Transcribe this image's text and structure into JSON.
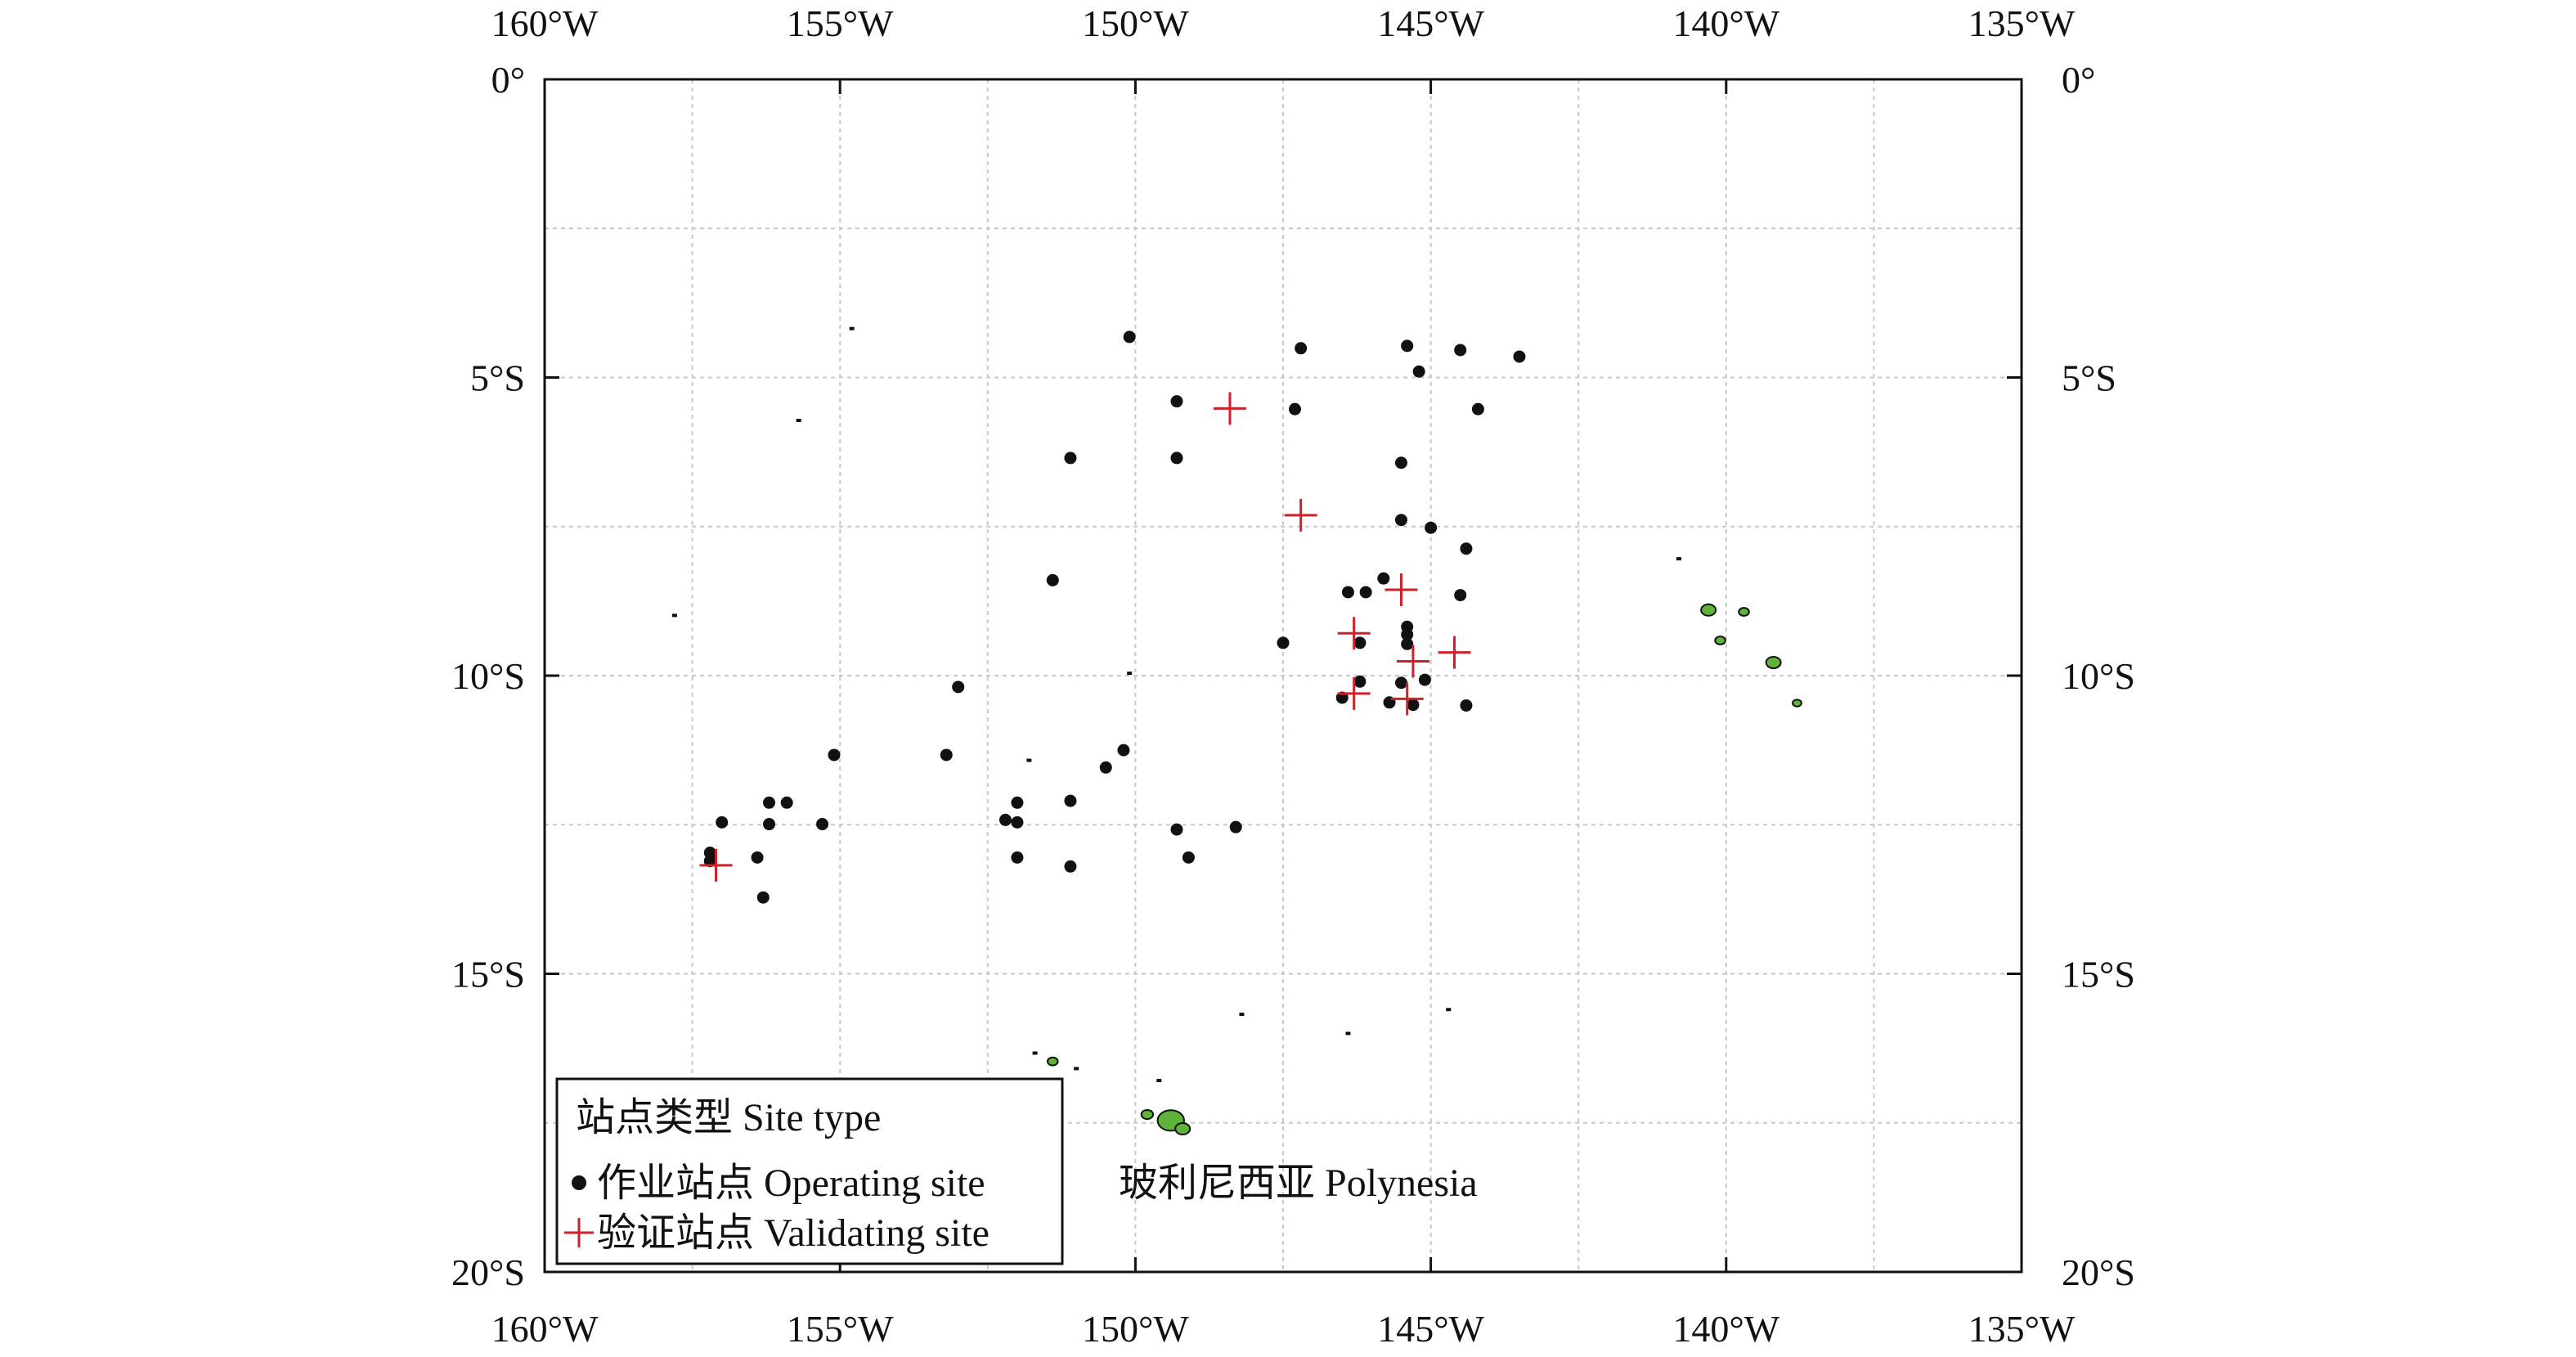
{
  "map_data": {
    "type": "scatter-map",
    "region_label": "玻利尼西亚 Polynesia",
    "lon_range": [
      -160,
      -135
    ],
    "lat_range": [
      -20,
      0
    ],
    "grid_step_deg": 2.5,
    "x_ticks": [
      {
        "value": -160,
        "label": "160°W"
      },
      {
        "value": -155,
        "label": "155°W"
      },
      {
        "value": -150,
        "label": "150°W"
      },
      {
        "value": -145,
        "label": "145°W"
      },
      {
        "value": -140,
        "label": "140°W"
      },
      {
        "value": -135,
        "label": "135°W"
      }
    ],
    "y_ticks": [
      {
        "value": 0,
        "label": "0°"
      },
      {
        "value": -5,
        "label": "5°S"
      },
      {
        "value": -10,
        "label": "10°S"
      },
      {
        "value": -15,
        "label": "15°S"
      },
      {
        "value": -20,
        "label": "20°S"
      }
    ],
    "legend": {
      "title": "站点类型 Site type",
      "placement": "bottom-left",
      "entries": [
        {
          "label": "作业站点 Operating site",
          "marker": "dot",
          "color": "#111111"
        },
        {
          "label": "验证站点 Validating site",
          "marker": "plus",
          "color": "#d0202a"
        }
      ]
    },
    "colors": {
      "operating": "#111111",
      "validating": "#d0202a",
      "land": "#5fb33a",
      "grid": "#c8c8c8"
    },
    "operating_sites": [
      [
        -150.1,
        -4.32
      ],
      [
        -147.2,
        -4.51
      ],
      [
        -145.4,
        -4.47
      ],
      [
        -144.5,
        -4.54
      ],
      [
        -143.5,
        -4.65
      ],
      [
        -145.2,
        -4.9
      ],
      [
        -149.3,
        -5.4
      ],
      [
        -147.3,
        -5.53
      ],
      [
        -144.2,
        -5.53
      ],
      [
        -151.1,
        -6.35
      ],
      [
        -149.3,
        -6.35
      ],
      [
        -145.5,
        -6.43
      ],
      [
        -145.5,
        -7.39
      ],
      [
        -145.0,
        -7.52
      ],
      [
        -144.4,
        -7.87
      ],
      [
        -151.4,
        -8.4
      ],
      [
        -146.4,
        -8.6
      ],
      [
        -146.1,
        -8.6
      ],
      [
        -145.8,
        -8.37
      ],
      [
        -144.5,
        -8.65
      ],
      [
        -147.5,
        -9.45
      ],
      [
        -146.2,
        -9.45
      ],
      [
        -145.4,
        -9.18
      ],
      [
        -145.4,
        -9.31
      ],
      [
        -145.4,
        -9.47
      ],
      [
        -153.0,
        -10.19
      ],
      [
        -146.2,
        -10.1
      ],
      [
        -145.5,
        -10.12
      ],
      [
        -145.1,
        -10.07
      ],
      [
        -146.5,
        -10.37
      ],
      [
        -145.7,
        -10.45
      ],
      [
        -145.3,
        -10.49
      ],
      [
        -144.4,
        -10.5
      ],
      [
        -155.1,
        -11.33
      ],
      [
        -153.2,
        -11.33
      ],
      [
        -150.2,
        -11.25
      ],
      [
        -150.5,
        -11.54
      ],
      [
        -156.2,
        -12.13
      ],
      [
        -155.9,
        -12.13
      ],
      [
        -152.0,
        -12.13
      ],
      [
        -151.1,
        -12.1
      ],
      [
        -157.0,
        -12.46
      ],
      [
        -156.2,
        -12.49
      ],
      [
        -155.3,
        -12.49
      ],
      [
        -152.2,
        -12.42
      ],
      [
        -152.0,
        -12.46
      ],
      [
        -149.3,
        -12.58
      ],
      [
        -148.3,
        -12.54
      ],
      [
        -157.2,
        -12.97
      ],
      [
        -157.2,
        -13.11
      ],
      [
        -156.4,
        -13.05
      ],
      [
        -152.0,
        -13.05
      ],
      [
        -151.1,
        -13.2
      ],
      [
        -149.1,
        -13.05
      ],
      [
        -156.3,
        -13.72
      ]
    ],
    "validating_sites": [
      [
        -148.4,
        -5.52
      ],
      [
        -147.2,
        -7.31
      ],
      [
        -145.5,
        -8.56
      ],
      [
        -146.3,
        -9.29
      ],
      [
        -144.6,
        -9.61
      ],
      [
        -145.3,
        -9.76
      ],
      [
        -146.3,
        -10.3
      ],
      [
        -145.4,
        -10.39
      ],
      [
        -157.1,
        -13.18
      ]
    ],
    "small_islands": [
      [
        -154.8,
        -4.18
      ],
      [
        -155.7,
        -5.72
      ],
      [
        -157.8,
        -8.99
      ],
      [
        -150.1,
        -9.96
      ],
      [
        -148.2,
        -15.68
      ],
      [
        -146.4,
        -16.0
      ],
      [
        -144.7,
        -15.6
      ],
      [
        -140.8,
        -8.04
      ],
      [
        -151.7,
        -16.33
      ],
      [
        -151.0,
        -16.59
      ],
      [
        -149.6,
        -16.79
      ],
      [
        -151.8,
        -11.42
      ]
    ],
    "green_islands": [
      [
        -140.3,
        -8.9,
        1
      ],
      [
        -140.1,
        -9.41,
        0.7
      ],
      [
        -139.7,
        -8.93,
        0.7
      ],
      [
        -139.2,
        -9.78,
        1
      ],
      [
        -138.8,
        -10.46,
        0.6
      ],
      [
        -149.4,
        -17.46,
        1.8
      ],
      [
        -149.8,
        -17.36,
        0.8
      ],
      [
        -149.2,
        -17.6,
        1
      ],
      [
        -151.4,
        -16.47,
        0.7
      ]
    ]
  }
}
